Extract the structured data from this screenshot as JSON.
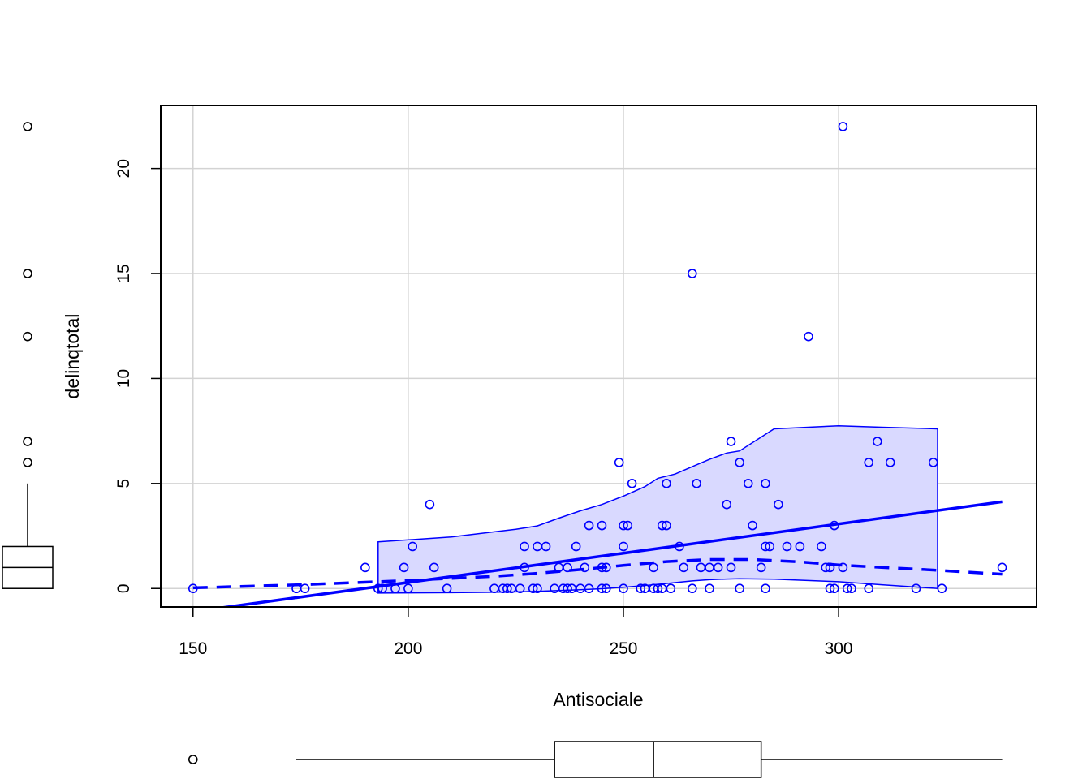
{
  "chart_data": {
    "type": "scatter",
    "title": "",
    "xlabel": "Antisociale",
    "ylabel": "delinqtotal",
    "xlim": [
      142.5,
      346.0
    ],
    "ylim": [
      -0.88,
      23.0
    ],
    "x_ticks": [
      150,
      200,
      250,
      300
    ],
    "y_ticks": [
      0,
      5,
      10,
      15,
      20
    ],
    "x_tick_labels": [
      "150",
      "200",
      "250",
      "300"
    ],
    "y_tick_labels": [
      "0",
      "5",
      "10",
      "15",
      "20"
    ],
    "grid": true,
    "legend": "none",
    "colors": {
      "points": "#0000ff",
      "band_fill": "#d9d9ff",
      "axes": "#000000",
      "grid": "#d3d3d3"
    },
    "points": [
      [
        150,
        0
      ],
      [
        174,
        0
      ],
      [
        176,
        0
      ],
      [
        190,
        1
      ],
      [
        193,
        0
      ],
      [
        194,
        0
      ],
      [
        197,
        0
      ],
      [
        199,
        1
      ],
      [
        200,
        0
      ],
      [
        201,
        2
      ],
      [
        205,
        4
      ],
      [
        206,
        1
      ],
      [
        209,
        0
      ],
      [
        220,
        0
      ],
      [
        222,
        0
      ],
      [
        223,
        0
      ],
      [
        224,
        0
      ],
      [
        226,
        0
      ],
      [
        227,
        1
      ],
      [
        227,
        2
      ],
      [
        229,
        0
      ],
      [
        230,
        0
      ],
      [
        230,
        2
      ],
      [
        232,
        2
      ],
      [
        234,
        0
      ],
      [
        235,
        1
      ],
      [
        236,
        0
      ],
      [
        237,
        0
      ],
      [
        237,
        1
      ],
      [
        238,
        0
      ],
      [
        239,
        2
      ],
      [
        240,
        0
      ],
      [
        241,
        1
      ],
      [
        242,
        0
      ],
      [
        242,
        3
      ],
      [
        245,
        0
      ],
      [
        245,
        1
      ],
      [
        245,
        3
      ],
      [
        246,
        1
      ],
      [
        246,
        0
      ],
      [
        249,
        6
      ],
      [
        250,
        0
      ],
      [
        250,
        2
      ],
      [
        250,
        3
      ],
      [
        251,
        3
      ],
      [
        252,
        5
      ],
      [
        254,
        0
      ],
      [
        255,
        0
      ],
      [
        257,
        0
      ],
      [
        257,
        1
      ],
      [
        258,
        0
      ],
      [
        259,
        0
      ],
      [
        259,
        3
      ],
      [
        260,
        3
      ],
      [
        260,
        5
      ],
      [
        261,
        0
      ],
      [
        263,
        2
      ],
      [
        264,
        1
      ],
      [
        266,
        0
      ],
      [
        266,
        15
      ],
      [
        267,
        5
      ],
      [
        268,
        1
      ],
      [
        270,
        0
      ],
      [
        270,
        1
      ],
      [
        272,
        1
      ],
      [
        274,
        4
      ],
      [
        275,
        1
      ],
      [
        275,
        7
      ],
      [
        277,
        0
      ],
      [
        277,
        6
      ],
      [
        279,
        5
      ],
      [
        280,
        3
      ],
      [
        282,
        1
      ],
      [
        283,
        0
      ],
      [
        283,
        2
      ],
      [
        283,
        5
      ],
      [
        284,
        2
      ],
      [
        286,
        4
      ],
      [
        288,
        2
      ],
      [
        291,
        2
      ],
      [
        293,
        12
      ],
      [
        296,
        2
      ],
      [
        297,
        1
      ],
      [
        298,
        0
      ],
      [
        298,
        1
      ],
      [
        299,
        0
      ],
      [
        299,
        3
      ],
      [
        301,
        1
      ],
      [
        301,
        22
      ],
      [
        302,
        0
      ],
      [
        303,
        0
      ],
      [
        307,
        0
      ],
      [
        307,
        6
      ],
      [
        309,
        7
      ],
      [
        312,
        6
      ],
      [
        318,
        0
      ],
      [
        322,
        6
      ],
      [
        324,
        0
      ],
      [
        338,
        1
      ]
    ],
    "linear_fit": {
      "x": [
        155.5,
        338.0
      ],
      "y": [
        -0.95,
        4.13
      ]
    },
    "smooth_fit": {
      "x": [
        150,
        175,
        200,
        210,
        220,
        230,
        240,
        250,
        260,
        270,
        280,
        290,
        300,
        310,
        320,
        338
      ],
      "y": [
        0.03,
        0.18,
        0.38,
        0.48,
        0.58,
        0.72,
        0.9,
        1.1,
        1.28,
        1.38,
        1.38,
        1.28,
        1.12,
        1.0,
        0.9,
        0.68
      ]
    },
    "band": {
      "x": [
        193,
        210,
        220,
        225,
        230,
        235,
        240,
        245,
        250,
        255,
        258,
        262,
        266,
        270,
        274,
        277,
        285,
        300,
        310,
        323
      ],
      "upper": [
        2.22,
        2.45,
        2.7,
        2.82,
        2.98,
        3.35,
        3.7,
        4.0,
        4.4,
        4.85,
        5.25,
        5.45,
        5.8,
        6.15,
        6.45,
        6.55,
        7.6,
        7.75,
        7.68,
        7.6
      ],
      "lower": [
        -0.22,
        -0.2,
        -0.18,
        -0.16,
        -0.14,
        -0.1,
        -0.06,
        -0.01,
        0.06,
        0.14,
        0.2,
        0.28,
        0.36,
        0.42,
        0.45,
        0.46,
        0.44,
        0.32,
        0.18,
        0.0
      ]
    },
    "x_boxplot": {
      "min": 174,
      "q1": 234,
      "median": 257,
      "q3": 282,
      "max": 338,
      "outliers": [
        150
      ]
    },
    "y_boxplot": {
      "min": 0,
      "q1": 0,
      "median": 1,
      "q3": 2,
      "max": 5,
      "outliers": [
        6,
        7,
        12,
        15,
        22
      ]
    }
  }
}
